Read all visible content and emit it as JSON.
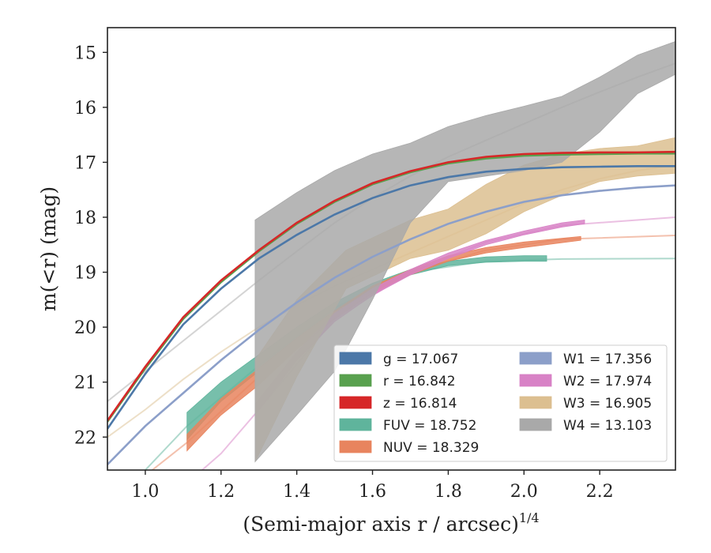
{
  "chart_data": {
    "type": "line",
    "xlabel": "(Semi-major axis r / arcsec)",
    "xlabel_sup": "1/4",
    "ylabel": "m(<r) (mag)",
    "xlim": [
      0.9,
      2.4
    ],
    "ylim": [
      22.6,
      14.55
    ],
    "y_inverted": true,
    "xticks": [
      "1.0",
      "1.2",
      "1.4",
      "1.6",
      "1.8",
      "2.0",
      "2.2"
    ],
    "yticks": [
      "15",
      "16",
      "17",
      "18",
      "19",
      "20",
      "21",
      "22"
    ],
    "grid": false,
    "legend_position": "lower-right",
    "legend_columns": 2,
    "series": [
      {
        "name": "g",
        "legend": "g = 17.067",
        "color": "#4c78a8",
        "kind": "line",
        "x": [
          0.9,
          1.0,
          1.1,
          1.2,
          1.3,
          1.4,
          1.5,
          1.6,
          1.7,
          1.8,
          1.9,
          2.0,
          2.1,
          2.2,
          2.3,
          2.4
        ],
        "y": [
          21.85,
          20.85,
          19.95,
          19.3,
          18.75,
          18.32,
          17.95,
          17.65,
          17.42,
          17.27,
          17.17,
          17.12,
          17.09,
          17.08,
          17.07,
          17.07
        ]
      },
      {
        "name": "r",
        "legend": "r = 16.842",
        "color": "#59a14f",
        "kind": "line",
        "x": [
          0.9,
          1.0,
          1.1,
          1.2,
          1.3,
          1.4,
          1.5,
          1.6,
          1.7,
          1.8,
          1.9,
          2.0,
          2.1,
          2.2,
          2.3,
          2.4
        ],
        "y": [
          21.72,
          20.75,
          19.85,
          19.18,
          18.62,
          18.12,
          17.72,
          17.4,
          17.18,
          17.02,
          16.93,
          16.88,
          16.86,
          16.85,
          16.84,
          16.84
        ]
      },
      {
        "name": "z",
        "legend": "z = 16.814",
        "color": "#d62728",
        "kind": "line",
        "x": [
          0.9,
          1.0,
          1.1,
          1.2,
          1.3,
          1.4,
          1.5,
          1.6,
          1.7,
          1.8,
          1.9,
          2.0,
          2.1,
          2.2,
          2.3,
          2.4
        ],
        "y": [
          21.7,
          20.72,
          19.82,
          19.15,
          18.6,
          18.1,
          17.7,
          17.38,
          17.16,
          17.0,
          16.9,
          16.85,
          16.83,
          16.82,
          16.82,
          16.81
        ]
      },
      {
        "name": "FUV",
        "legend": "FUV = 18.752",
        "color": "#5fb49c",
        "kind": "band",
        "x": [
          1.11,
          1.2,
          1.3,
          1.4,
          1.5,
          1.6,
          1.7,
          1.8,
          1.9,
          2.0,
          2.06
        ],
        "y_low": [
          21.55,
          21.0,
          20.5,
          20.0,
          19.55,
          19.2,
          18.95,
          18.8,
          18.72,
          18.7,
          18.7
        ],
        "y_high": [
          22.05,
          21.35,
          20.8,
          20.2,
          19.7,
          19.35,
          19.05,
          18.88,
          18.82,
          18.8,
          18.8
        ],
        "x_ext": [
          0.9,
          1.0,
          1.11,
          1.3,
          1.5,
          1.7,
          1.9,
          2.1,
          2.4
        ],
        "y_ext": [
          23.6,
          22.6,
          21.8,
          20.7,
          19.65,
          19.0,
          18.8,
          18.76,
          18.75
        ]
      },
      {
        "name": "NUV",
        "legend": "NUV = 18.329",
        "color": "#e8845e",
        "kind": "band",
        "x": [
          1.11,
          1.2,
          1.3,
          1.4,
          1.5,
          1.6,
          1.7,
          1.8,
          1.9,
          2.0,
          2.15
        ],
        "y_low": [
          21.95,
          21.3,
          20.75,
          20.2,
          19.7,
          19.25,
          18.95,
          18.7,
          18.55,
          18.45,
          18.35
        ],
        "y_high": [
          22.25,
          21.6,
          21.05,
          20.4,
          19.85,
          19.38,
          19.05,
          18.8,
          18.65,
          18.55,
          18.42
        ],
        "x_ext": [
          0.9,
          1.0,
          1.11,
          1.3,
          1.5,
          1.7,
          1.9,
          2.1,
          2.4
        ],
        "y_ext": [
          23.4,
          22.7,
          22.1,
          20.9,
          19.8,
          19.0,
          18.6,
          18.4,
          18.33
        ]
      },
      {
        "name": "W1",
        "legend": "W1 = 17.356",
        "color": "#8c9fc9",
        "kind": "line",
        "x": [
          0.9,
          1.0,
          1.1,
          1.2,
          1.3,
          1.4,
          1.5,
          1.6,
          1.7,
          1.8,
          1.9,
          2.0,
          2.1,
          2.2,
          2.3,
          2.4
        ],
        "y": [
          22.5,
          21.8,
          21.2,
          20.6,
          20.05,
          19.55,
          19.1,
          18.72,
          18.4,
          18.12,
          17.9,
          17.72,
          17.6,
          17.52,
          17.46,
          17.42
        ]
      },
      {
        "name": "W2",
        "legend": "W2 = 17.974",
        "color": "#d882c6",
        "kind": "band",
        "x": [
          1.29,
          1.4,
          1.5,
          1.6,
          1.7,
          1.8,
          1.9,
          2.0,
          2.1,
          2.16
        ],
        "y_low": [
          21.4,
          20.45,
          19.75,
          19.3,
          18.95,
          18.65,
          18.42,
          18.25,
          18.1,
          18.05
        ],
        "y_high": [
          21.6,
          20.6,
          19.9,
          19.42,
          19.05,
          18.75,
          18.5,
          18.32,
          18.18,
          18.12
        ],
        "x_ext": [
          0.9,
          1.0,
          1.1,
          1.2,
          1.3,
          1.5,
          1.7,
          1.9,
          2.1,
          2.4
        ],
        "y_ext": [
          24.2,
          23.4,
          22.9,
          22.3,
          21.5,
          19.85,
          19.0,
          18.45,
          18.15,
          18.0
        ]
      },
      {
        "name": "W3",
        "legend": "W3 = 16.905",
        "color": "#dcbf90",
        "kind": "band",
        "x": [
          1.29,
          1.4,
          1.53,
          1.7,
          1.8,
          1.9,
          2.0,
          2.1,
          2.2,
          2.3,
          2.4
        ],
        "y_low": [
          20.6,
          19.5,
          18.6,
          18.05,
          17.85,
          17.4,
          17.05,
          16.85,
          16.75,
          16.7,
          16.55
        ],
        "y_high": [
          22.45,
          20.9,
          19.3,
          18.75,
          18.6,
          18.3,
          17.9,
          17.6,
          17.35,
          17.25,
          17.2
        ],
        "x_ext": [
          0.9,
          1.0,
          1.1,
          1.2,
          1.3,
          1.4,
          1.5,
          1.6,
          1.7,
          1.8,
          1.9,
          2.0,
          2.1,
          2.2,
          2.3,
          2.4
        ],
        "y_ext": [
          22.0,
          21.5,
          20.95,
          20.45,
          20.0,
          19.6,
          19.25,
          18.95,
          18.65,
          18.35,
          18.05,
          17.75,
          17.5,
          17.3,
          17.15,
          17.05
        ]
      },
      {
        "name": "W4",
        "legend": "W4 = 13.103",
        "color": "#a9a9a9",
        "kind": "band",
        "x": [
          1.29,
          1.4,
          1.5,
          1.6,
          1.7,
          1.8,
          1.9,
          2.0,
          2.1,
          2.2,
          2.3,
          2.4
        ],
        "y_low": [
          18.05,
          17.55,
          17.15,
          16.85,
          16.65,
          16.35,
          16.15,
          15.98,
          15.8,
          15.45,
          15.05,
          14.8
        ],
        "y_high": [
          22.45,
          21.6,
          20.8,
          19.5,
          18.1,
          17.35,
          17.25,
          17.15,
          17.0,
          16.45,
          15.75,
          15.4
        ],
        "x_ext": [
          0.9,
          1.0,
          1.1,
          1.2,
          1.3,
          1.4,
          1.5,
          1.6,
          1.7,
          1.8,
          1.9,
          2.0,
          2.1,
          2.2,
          2.3,
          2.4
        ],
        "y_ext": [
          21.35,
          20.8,
          20.25,
          19.7,
          19.15,
          18.62,
          18.1,
          17.65,
          17.25,
          16.9,
          16.6,
          16.3,
          16.0,
          15.72,
          15.45,
          15.2
        ]
      }
    ],
    "legend_layout": [
      [
        "g",
        "W1"
      ],
      [
        "r",
        "W2"
      ],
      [
        "z",
        "W3"
      ],
      [
        "FUV",
        "W4"
      ],
      [
        "NUV",
        null
      ]
    ]
  }
}
